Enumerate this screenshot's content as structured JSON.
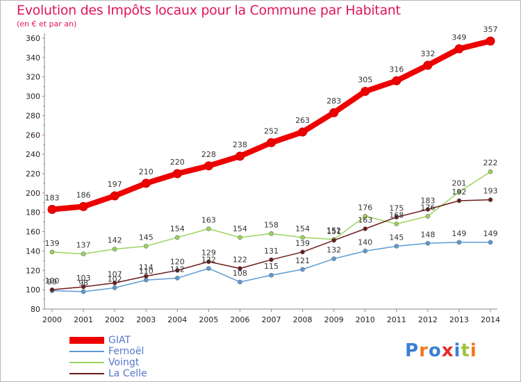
{
  "header": {
    "title": "Evolution des Impôts locaux pour la Commune par Habitant",
    "subtitle": "(en € et par an)"
  },
  "logo": {
    "text": "Proxiti",
    "colors": [
      "#3a7fd5",
      "#f07a1a",
      "#3a7fd5",
      "#e82a2a",
      "#3a7fd5",
      "#9bc53d",
      "#f07a1a"
    ]
  },
  "colors": {
    "axis": "#888888",
    "grid": "#dddddd",
    "tick_marks": "#e06070"
  },
  "chart_data": {
    "type": "line",
    "title": "Evolution des Impôts locaux pour la Commune par Habitant",
    "subtitle": "(en € et par an)",
    "xlabel": "",
    "ylabel": "",
    "x": [
      "2000",
      "2001",
      "2002",
      "2003",
      "2004",
      "2005",
      "2006",
      "2007",
      "2008",
      "2009",
      "2010",
      "2011",
      "2012",
      "2013",
      "2014"
    ],
    "ylim": [
      80,
      365
    ],
    "yticks": [
      80,
      100,
      120,
      140,
      160,
      180,
      200,
      220,
      240,
      260,
      280,
      300,
      320,
      340,
      360
    ],
    "grid": false,
    "legend": "bottom-left",
    "series": [
      {
        "name": "GIAT",
        "color": "#ee0000",
        "values": [
          183,
          186,
          197,
          210,
          220,
          228,
          238,
          252,
          263,
          283,
          305,
          316,
          332,
          349,
          357
        ]
      },
      {
        "name": "Fernoël",
        "color": "#5b9bd5",
        "values": [
          99,
          98,
          102,
          110,
          112,
          122,
          108,
          115,
          121,
          132,
          140,
          145,
          148,
          149,
          149
        ]
      },
      {
        "name": "Voingt",
        "color": "#9ad45a",
        "values": [
          139,
          137,
          142,
          145,
          154,
          163,
          154,
          158,
          154,
          152,
          176,
          168,
          176,
          201,
          222
        ]
      },
      {
        "name": "La Celle",
        "color": "#6b1a1a",
        "values": [
          100,
          103,
          107,
          114,
          120,
          129,
          122,
          131,
          139,
          151,
          163,
          175,
          183,
          192,
          193
        ]
      }
    ],
    "data_labels": [
      {
        "series": "GIAT",
        "values": [
          183,
          186,
          197,
          210,
          220,
          228,
          238,
          252,
          263,
          283,
          305,
          316,
          332,
          349,
          357
        ]
      },
      {
        "series": "Fernoël",
        "values": [
          99,
          98,
          102,
          110,
          112,
          122,
          108,
          115,
          121,
          132,
          140,
          145,
          148,
          149,
          149
        ]
      },
      {
        "series": "Voingt",
        "values": [
          139,
          137,
          142,
          145,
          154,
          163,
          154,
          158,
          154,
          152,
          176,
          168,
          176,
          201,
          222
        ]
      },
      {
        "series": "La Celle",
        "values": [
          100,
          103,
          107,
          114,
          120,
          129,
          122,
          131,
          139,
          151,
          163,
          175,
          183,
          192,
          193
        ]
      }
    ]
  }
}
